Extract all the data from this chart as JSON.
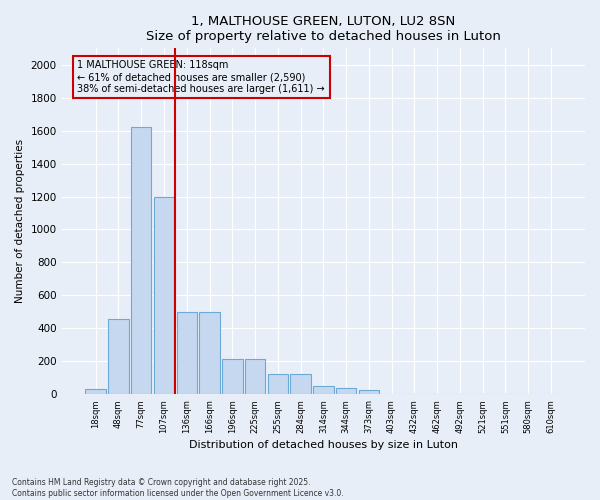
{
  "title": "1, MALTHOUSE GREEN, LUTON, LU2 8SN",
  "subtitle": "Size of property relative to detached houses in Luton",
  "xlabel": "Distribution of detached houses by size in Luton",
  "ylabel": "Number of detached properties",
  "categories": [
    "18sqm",
    "48sqm",
    "77sqm",
    "107sqm",
    "136sqm",
    "166sqm",
    "196sqm",
    "225sqm",
    "255sqm",
    "284sqm",
    "314sqm",
    "344sqm",
    "373sqm",
    "403sqm",
    "432sqm",
    "462sqm",
    "492sqm",
    "521sqm",
    "551sqm",
    "580sqm",
    "610sqm"
  ],
  "values": [
    30,
    455,
    1620,
    1200,
    500,
    500,
    215,
    215,
    120,
    120,
    50,
    40,
    25,
    0,
    0,
    0,
    0,
    0,
    0,
    0,
    0
  ],
  "bar_color": "#c5d8f0",
  "bar_edge_color": "#6aaad4",
  "vline_x": 3.5,
  "vline_color": "#cc0000",
  "annotation_text": "1 MALTHOUSE GREEN: 118sqm\n← 61% of detached houses are smaller (2,590)\n38% of semi-detached houses are larger (1,611) →",
  "annotation_box_color": "#cc0000",
  "ylim": [
    0,
    2100
  ],
  "yticks": [
    0,
    200,
    400,
    600,
    800,
    1000,
    1200,
    1400,
    1600,
    1800,
    2000
  ],
  "bg_color": "#e8eef8",
  "grid_color": "#ffffff",
  "footer": "Contains HM Land Registry data © Crown copyright and database right 2025.\nContains public sector information licensed under the Open Government Licence v3.0."
}
